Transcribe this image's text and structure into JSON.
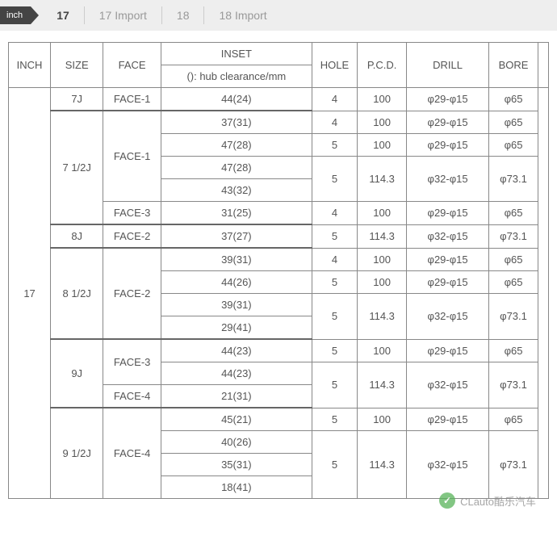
{
  "tabbar": {
    "flag": "inch",
    "tabs": [
      "17",
      "17 Import",
      "18",
      "18 Import"
    ],
    "active_index": 0
  },
  "table": {
    "headers": {
      "inch": "INCH",
      "size": "SIZE",
      "face": "FACE",
      "inset": "INSET",
      "inset_sub": "(): hub clearance/mm",
      "hole": "HOLE",
      "pcd": "P.C.D.",
      "drill": "DRILL",
      "bore": "BORE"
    },
    "inch_label": "17",
    "rows": [
      {
        "size": "7J",
        "face": "FACE-1",
        "inset": "44(24)",
        "hole": "4",
        "pcd": "100",
        "drill": "φ29-φ15",
        "bore": "φ65"
      },
      {
        "size": "7 1/2J",
        "face": "FACE-1",
        "inset": "37(31)",
        "hole": "4",
        "pcd": "100",
        "drill": "φ29-φ15",
        "bore": "φ65"
      },
      {
        "inset": "47(28)",
        "hole": "5",
        "pcd": "100",
        "drill": "φ29-φ15",
        "bore": "φ65"
      },
      {
        "inset": "47(28)",
        "hole": "5",
        "pcd": "114.3",
        "drill": "φ32-φ15",
        "bore": "φ73.1"
      },
      {
        "inset": "43(32)"
      },
      {
        "face": "FACE-3",
        "inset": "31(25)",
        "hole": "4",
        "pcd": "100",
        "drill": "φ29-φ15",
        "bore": "φ65"
      },
      {
        "size": "8J",
        "face": "FACE-2",
        "inset": "37(27)",
        "hole": "5",
        "pcd": "114.3",
        "drill": "φ32-φ15",
        "bore": "φ73.1"
      },
      {
        "size": "8 1/2J",
        "face": "FACE-2",
        "inset": "39(31)",
        "hole": "4",
        "pcd": "100",
        "drill": "φ29-φ15",
        "bore": "φ65"
      },
      {
        "inset": "44(26)",
        "hole": "5",
        "pcd": "100",
        "drill": "φ29-φ15",
        "bore": "φ65"
      },
      {
        "inset": "39(31)",
        "hole": "5",
        "pcd": "114.3",
        "drill": "φ32-φ15",
        "bore": "φ73.1"
      },
      {
        "inset": "29(41)"
      },
      {
        "size": "9J",
        "face": "FACE-3",
        "inset": "44(23)",
        "hole": "5",
        "pcd": "100",
        "drill": "φ29-φ15",
        "bore": "φ65"
      },
      {
        "inset": "44(23)",
        "hole": "5",
        "pcd": "114.3",
        "drill": "φ32-φ15",
        "bore": "φ73.1"
      },
      {
        "face": "FACE-4",
        "inset": "21(31)"
      },
      {
        "size": "9 1/2J",
        "face": "FACE-4",
        "inset": "45(21)",
        "hole": "5",
        "pcd": "100",
        "drill": "φ29-φ15",
        "bore": "φ65"
      },
      {
        "inset": "40(26)",
        "hole": "5",
        "pcd": "114.3",
        "drill": "φ32-φ15",
        "bore": "φ73.1"
      },
      {
        "inset": "35(31)"
      },
      {
        "inset": "18(41)"
      }
    ],
    "colors": {
      "border": "#888888",
      "text": "#555555",
      "tab_bg": "#eeeeee",
      "flag_bg": "#444444"
    }
  },
  "watermark": {
    "text": "CLauto酷乐汽车"
  }
}
